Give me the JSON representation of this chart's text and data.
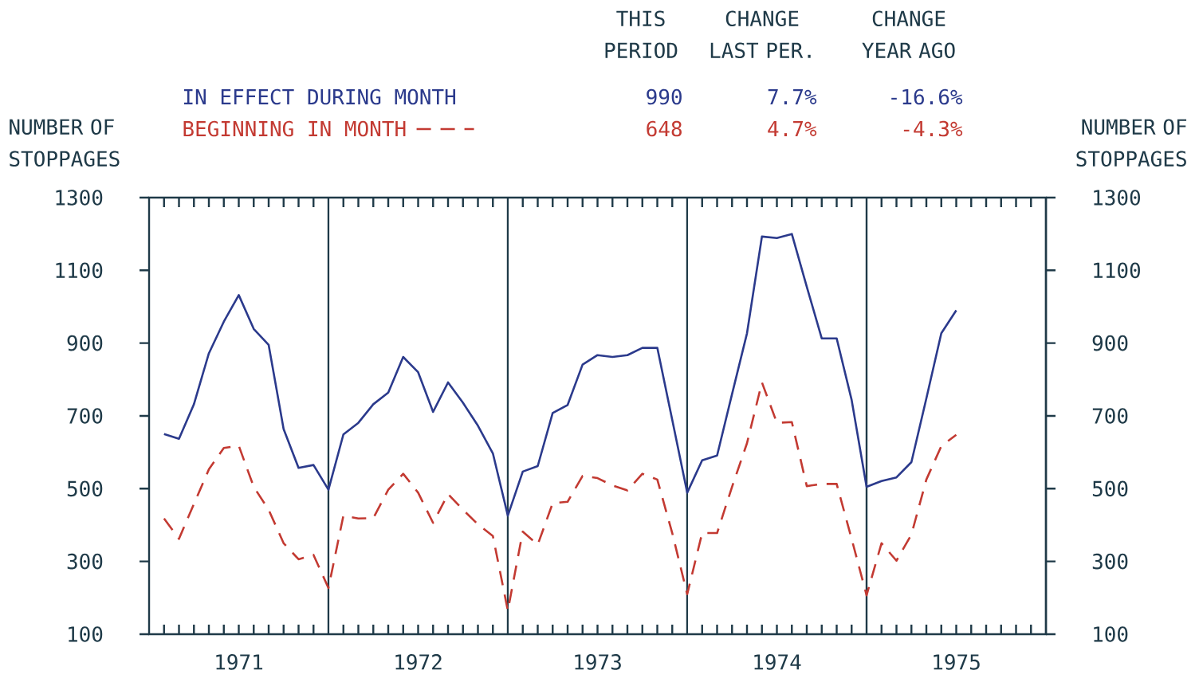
{
  "chart_data": {
    "type": "line",
    "ylabel": "NUMBER OF STOPPAGES",
    "y2label": "NUMBER OF STOPPAGES",
    "x": [
      "1971-01",
      "1971-02",
      "1971-03",
      "1971-04",
      "1971-05",
      "1971-06",
      "1971-07",
      "1971-08",
      "1971-09",
      "1971-10",
      "1971-11",
      "1971-12",
      "1972-01",
      "1972-02",
      "1972-03",
      "1972-04",
      "1972-05",
      "1972-06",
      "1972-07",
      "1972-08",
      "1972-09",
      "1972-10",
      "1972-11",
      "1972-12",
      "1973-01",
      "1973-02",
      "1973-03",
      "1973-04",
      "1973-05",
      "1973-06",
      "1973-07",
      "1973-08",
      "1973-09",
      "1973-10",
      "1973-11",
      "1973-12",
      "1974-01",
      "1974-02",
      "1974-03",
      "1974-04",
      "1974-05",
      "1974-06",
      "1974-07",
      "1974-08",
      "1974-09",
      "1974-10",
      "1974-11",
      "1974-12",
      "1975-01",
      "1975-02",
      "1975-03",
      "1975-04",
      "1975-05",
      "1975-06"
    ],
    "series": [
      {
        "name": "IN EFFECT DURING MONTH",
        "color": "#2b3a8c",
        "line_style": "solid",
        "values": [
          650,
          637,
          732,
          872,
          959,
          1032,
          939,
          895,
          664,
          557,
          565,
          497,
          649,
          681,
          732,
          764,
          862,
          820,
          711,
          792,
          736,
          673,
          597,
          426,
          547,
          562,
          708,
          730,
          841,
          867,
          862,
          867,
          887,
          887,
          689,
          489,
          578,
          591,
          760,
          927,
          1193,
          1189,
          1200,
          1055,
          913,
          913,
          744,
          505,
          521,
          531,
          573,
          748,
          927,
          990
        ]
      },
      {
        "name": "BEGINNING IN MONTH",
        "color": "#c33a32",
        "line_style": "dashed",
        "values": [
          418,
          362,
          458,
          553,
          612,
          618,
          505,
          442,
          350,
          306,
          318,
          227,
          426,
          418,
          419,
          497,
          541,
          489,
          406,
          485,
          442,
          402,
          370,
          165,
          382,
          346,
          460,
          464,
          535,
          529,
          509,
          495,
          541,
          525,
          378,
          210,
          378,
          378,
          505,
          625,
          792,
          681,
          683,
          507,
          513,
          513,
          362,
          207,
          350,
          302,
          374,
          525,
          617,
          648
        ]
      }
    ],
    "xlim": [
      "1970-12",
      "1975-12"
    ],
    "xticks": [
      {
        "value": "1971-01",
        "label": null
      },
      {
        "value": "1971-02",
        "label": null
      },
      {
        "value": "1971-03",
        "label": null
      },
      {
        "value": "1971-04",
        "label": null
      },
      {
        "value": "1971-05",
        "label": null
      },
      {
        "value": "1971-06",
        "label": "1971"
      },
      {
        "value": "1971-07",
        "label": null
      },
      {
        "value": "1971-08",
        "label": null
      },
      {
        "value": "1971-09",
        "label": null
      },
      {
        "value": "1971-10",
        "label": null
      },
      {
        "value": "1971-11",
        "label": null
      },
      {
        "value": "1972-01",
        "label": null
      },
      {
        "value": "1972-02",
        "label": null
      },
      {
        "value": "1972-03",
        "label": null
      },
      {
        "value": "1972-04",
        "label": null
      },
      {
        "value": "1972-05",
        "label": null
      },
      {
        "value": "1972-06",
        "label": "1972"
      },
      {
        "value": "1972-07",
        "label": null
      },
      {
        "value": "1972-08",
        "label": null
      },
      {
        "value": "1972-09",
        "label": null
      },
      {
        "value": "1972-10",
        "label": null
      },
      {
        "value": "1972-11",
        "label": null
      },
      {
        "value": "1973-01",
        "label": null
      },
      {
        "value": "1973-02",
        "label": null
      },
      {
        "value": "1973-03",
        "label": null
      },
      {
        "value": "1973-04",
        "label": null
      },
      {
        "value": "1973-05",
        "label": null
      },
      {
        "value": "1973-06",
        "label": "1973"
      },
      {
        "value": "1973-07",
        "label": null
      },
      {
        "value": "1973-08",
        "label": null
      },
      {
        "value": "1973-09",
        "label": null
      },
      {
        "value": "1973-10",
        "label": null
      },
      {
        "value": "1973-11",
        "label": null
      },
      {
        "value": "1974-01",
        "label": null
      },
      {
        "value": "1974-02",
        "label": null
      },
      {
        "value": "1974-03",
        "label": null
      },
      {
        "value": "1974-04",
        "label": null
      },
      {
        "value": "1974-05",
        "label": null
      },
      {
        "value": "1974-06",
        "label": "1974"
      },
      {
        "value": "1974-07",
        "label": null
      },
      {
        "value": "1974-08",
        "label": null
      },
      {
        "value": "1974-09",
        "label": null
      },
      {
        "value": "1974-10",
        "label": null
      },
      {
        "value": "1974-11",
        "label": null
      },
      {
        "value": "1975-01",
        "label": null
      },
      {
        "value": "1975-02",
        "label": null
      },
      {
        "value": "1975-03",
        "label": null
      },
      {
        "value": "1975-04",
        "label": null
      },
      {
        "value": "1975-05",
        "label": null
      },
      {
        "value": "1975-06",
        "label": "1975"
      },
      {
        "value": "1975-07",
        "label": null
      },
      {
        "value": "1975-08",
        "label": null
      },
      {
        "value": "1975-09",
        "label": null
      },
      {
        "value": "1975-10",
        "label": null
      },
      {
        "value": "1975-11",
        "label": null
      }
    ],
    "ylim": [
      100,
      1300
    ],
    "yticks": [
      100,
      300,
      500,
      700,
      900,
      1100,
      1300
    ],
    "y2lim": [
      100,
      1300
    ],
    "y2ticks": [
      100,
      300,
      500,
      700,
      900,
      1100,
      1300
    ],
    "ref_lines": [
      {
        "axis": "x",
        "value": "1971-12"
      },
      {
        "axis": "x",
        "value": "1972-12"
      },
      {
        "axis": "x",
        "value": "1973-12"
      },
      {
        "axis": "x",
        "value": "1974-12"
      }
    ],
    "annotations": [
      "THIS PERIOD",
      "CHANGE LAST PER.",
      "CHANGE YEAR AGO",
      "990",
      "7.7%",
      "-16.6%",
      "648",
      "4.7%",
      "-4.3%"
    ],
    "legend": "top",
    "grid": false,
    "marker": "none"
  }
}
